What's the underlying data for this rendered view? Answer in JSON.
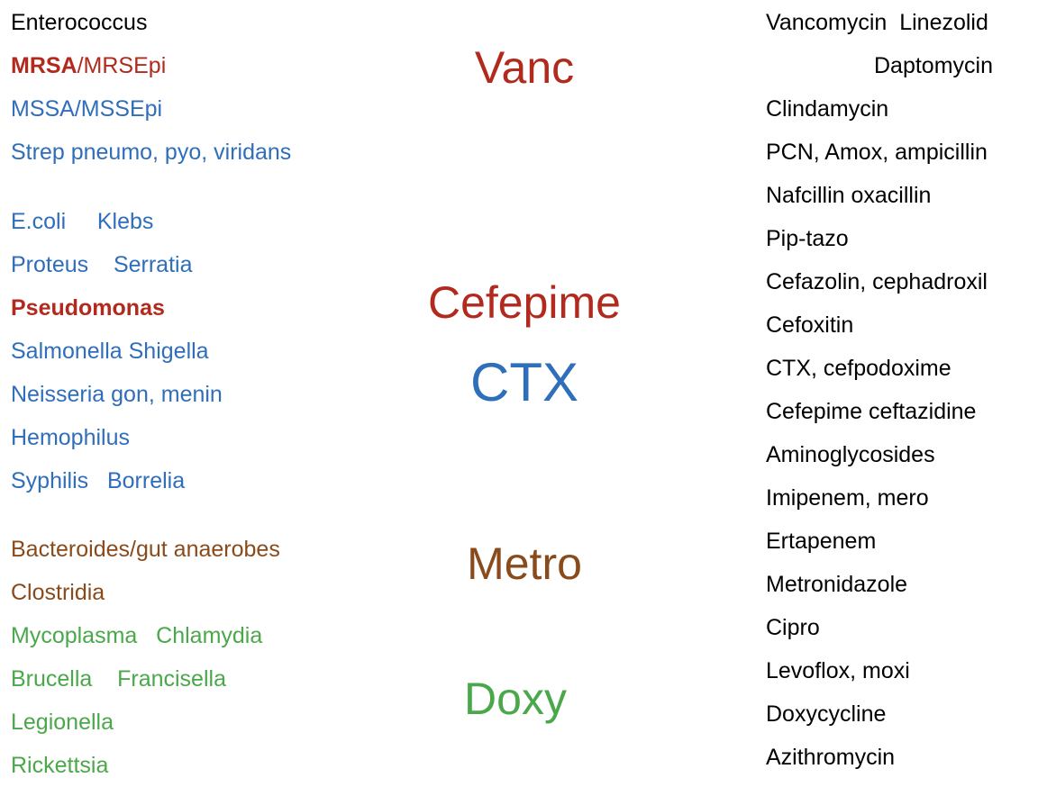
{
  "organisms": {
    "enterococcus": "Enterococcus",
    "mrsa": {
      "bold": "MRSA",
      "rest": "/MRSEpi"
    },
    "lines": [
      "MSSA/MSSEpi",
      "Strep pneumo, pyo, viridans",
      "E.coli     Klebs",
      "Proteus    Serratia",
      "Pseudomonas",
      "Salmonella Shigella",
      "Neisseria gon, menin",
      "Hemophilus",
      "Syphilis   Borrelia",
      "Bacteroides/gut anaerobes",
      "Clostridia",
      "Mycoplasma   Chlamydia",
      "Brucella    Francisella",
      "Legionella",
      "Rickettsia"
    ]
  },
  "drug_labels": [
    "Vanc",
    "Cefepime",
    "CTX",
    "Metro",
    "Doxy"
  ],
  "antibiotics": [
    "Vancomycin  Linezolid",
    "Daptomycin",
    "Clindamycin",
    "PCN, Amox, ampicillin",
    "Nafcillin oxacillin",
    "Pip-tazo",
    "Cefazolin, cephadroxil",
    "Cefoxitin",
    "CTX, cefpodoxime",
    "Cefepime ceftazidine",
    "Aminoglycosides",
    "Imipenem, mero",
    "Ertapenem",
    "Metronidazole",
    "Cipro",
    "Levoflox, moxi",
    "Doxycycline",
    "Azithromycin"
  ]
}
